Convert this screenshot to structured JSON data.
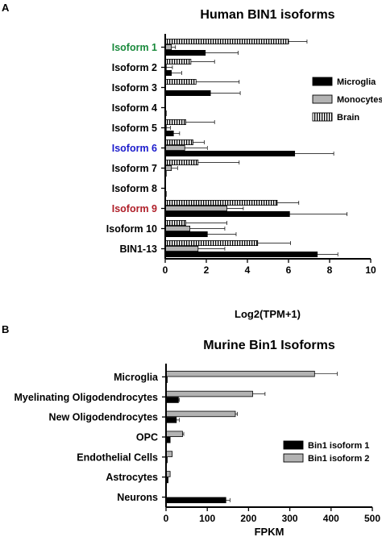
{
  "chart_data": [
    {
      "panel_label": "A",
      "type": "bar",
      "orientation": "horizontal",
      "title": "Human BIN1 isoforms",
      "xlabel": "Log2(TPM+1)",
      "ylabel": "",
      "xlim": [
        0,
        10
      ],
      "xticks": [
        0,
        2,
        4,
        6,
        8,
        10
      ],
      "categories": [
        "Isoform 1",
        "Isoform 2",
        "Isoform 3",
        "Isoform 4",
        "Isoform 5",
        "Isoform 6",
        "Isoform 7",
        "Isoform 8",
        "Isoform 9",
        "Isoform 10",
        "BIN1-13"
      ],
      "category_colors": [
        "#1a8a3c",
        "#000000",
        "#000000",
        "#000000",
        "#000000",
        "#1c1ccc",
        "#000000",
        "#000000",
        "#b0202a",
        "#000000",
        "#000000"
      ],
      "series": [
        {
          "name": "Brain",
          "pattern": "vertical-stripes",
          "color": "#ffffff",
          "values": [
            6.0,
            1.25,
            1.5,
            0.0,
            1.0,
            1.35,
            1.6,
            0.0,
            5.45,
            1.0,
            4.5
          ],
          "errors": [
            0.9,
            1.15,
            2.1,
            0.0,
            1.4,
            0.55,
            2.0,
            0.0,
            1.05,
            2.0,
            1.6
          ]
        },
        {
          "name": "Monocytes",
          "pattern": "solid",
          "color": "#b3b3b3",
          "values": [
            0.3,
            0.05,
            0.0,
            0.0,
            0.05,
            0.95,
            0.3,
            0.0,
            3.0,
            1.2,
            1.6
          ],
          "errors": [
            0.2,
            0.3,
            0.0,
            0.0,
            0.2,
            1.1,
            0.3,
            0.0,
            0.8,
            1.7,
            1.3
          ]
        },
        {
          "name": "Microglia",
          "pattern": "solid",
          "color": "#000000",
          "values": [
            1.95,
            0.3,
            2.2,
            0.05,
            0.4,
            6.3,
            0.05,
            0.05,
            6.05,
            2.05,
            7.4
          ],
          "errors": [
            1.6,
            0.5,
            1.45,
            0.0,
            0.3,
            1.9,
            0.0,
            0.0,
            2.8,
            1.4,
            1.0
          ]
        }
      ],
      "legend": {
        "position": "right",
        "order": [
          "Microglia",
          "Monocytes",
          "Brain"
        ]
      }
    },
    {
      "panel_label": "B",
      "type": "bar",
      "orientation": "horizontal",
      "title": "Murine Bin1 Isoforms",
      "xlabel": "FPKM",
      "ylabel": "",
      "xlim": [
        0,
        500
      ],
      "xticks": [
        0,
        100,
        200,
        300,
        400,
        500
      ],
      "categories": [
        "Microglia",
        "Myelinating Oligodendrocytes",
        "New Oligodendrocytes",
        "OPC",
        "Endothelial Cells",
        "Astrocytes",
        "Neurons"
      ],
      "series": [
        {
          "name": "Bin1 isoform 2",
          "pattern": "solid",
          "color": "#b3b3b3",
          "values": [
            360,
            210,
            168,
            40,
            15,
            10,
            0
          ],
          "errors": [
            55,
            30,
            5,
            3,
            0,
            0,
            0
          ]
        },
        {
          "name": "Bin1 isoform 1",
          "pattern": "solid",
          "color": "#000000",
          "values": [
            3,
            30,
            25,
            10,
            3,
            5,
            145
          ],
          "errors": [
            0,
            2,
            7,
            0,
            0,
            0,
            10
          ]
        }
      ],
      "legend": {
        "position": "right",
        "order": [
          "Bin1 isoform 1",
          "Bin1 isoform 2"
        ]
      }
    }
  ]
}
